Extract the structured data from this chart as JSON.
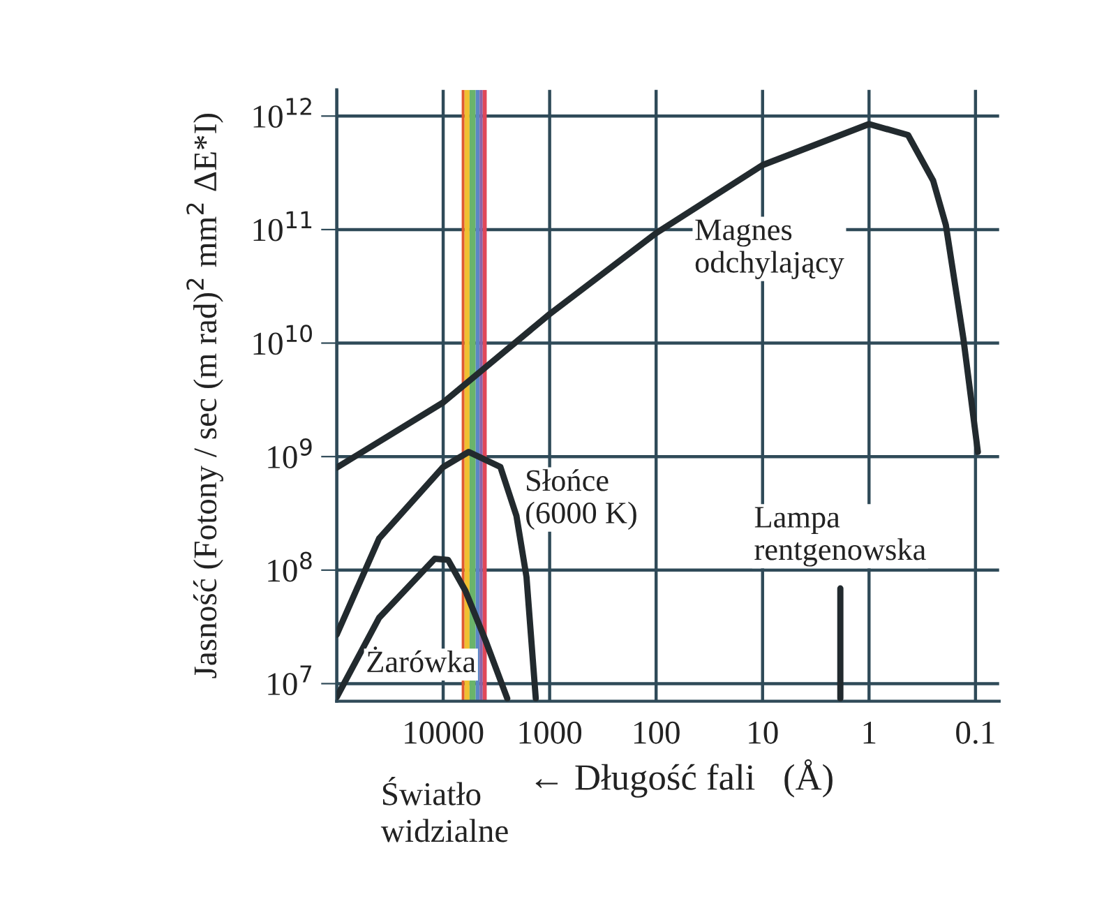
{
  "chart_data": {
    "type": "line",
    "xlabel": "← Długość fali   (Å)",
    "ylabel": "Jasność (Fotony / sec (m rad)$^{2}$ mm$^{2}$ ΔE*I)",
    "log": "xy",
    "xlim": [
      100000,
      0.06
    ],
    "ylim": [
      7000000,
      1700000000000.0
    ],
    "xticks": [
      {
        "value": 100000,
        "label": null
      },
      10000,
      1000,
      100,
      10,
      1,
      0.1
    ],
    "yticks": [
      {
        "value": 10000000.0,
        "label": "10$^{7}$"
      },
      {
        "value": 100000000.0,
        "label": "10$^{8}$"
      },
      {
        "value": 1000000000.0,
        "label": "10$^{9}$"
      },
      {
        "value": 10000000000.0,
        "label": "10$^{10}$"
      },
      {
        "value": 100000000000.0,
        "label": "10$^{11}$"
      },
      {
        "value": 1000000000000.0,
        "label": "10$^{12}$"
      }
    ],
    "grid": true,
    "marker": "none",
    "line_style": "solid",
    "series": [
      {
        "color": "#222a2e",
        "x": [
          100000,
          10000,
          1000,
          100,
          10,
          1,
          0.43,
          0.25,
          0.19,
          0.13,
          0.095
        ],
        "values": [
          800000000.0,
          3000000000.0,
          18000000000.0,
          93000000000.0,
          370000000000.0,
          850000000000.0,
          680000000000.0,
          270000000000.0,
          110000000000.0,
          11000000000.0,
          1100000000.0
        ]
      },
      {
        "color": "#222a2e",
        "x": [
          100000,
          40000,
          10000,
          5750,
          2900,
          2050,
          1650,
          1350
        ],
        "values": [
          27000000.0,
          190000000.0,
          810000000.0,
          1100000000.0,
          810000000.0,
          300000000.0,
          87000000.0,
          7400000.0
        ]
      },
      {
        "color": "#222a2e",
        "x": [
          100000,
          40000,
          12000,
          9000,
          6200,
          4000,
          2500
        ],
        "values": [
          7600000.0,
          38000000.0,
          126000000.0,
          123000000.0,
          66000000.0,
          24000000.0,
          7400000.0
        ]
      },
      {
        "color": "#222a2e",
        "x": [
          1.86,
          1.86
        ],
        "values": [
          69000000.0,
          7400000.0
        ]
      }
    ],
    "bands": [
      {
        "axis": "x",
        "from": 6700,
        "to": 6300,
        "color": "#e05a30"
      },
      {
        "axis": "x",
        "from": 6300,
        "to": 5650,
        "color": "#f0c030"
      },
      {
        "axis": "x",
        "from": 5650,
        "to": 4950,
        "color": "#6ab46a"
      },
      {
        "axis": "x",
        "from": 4950,
        "to": 4550,
        "color": "#5b86c4"
      },
      {
        "axis": "x",
        "from": 4550,
        "to": 4250,
        "color": "#8a64a8"
      },
      {
        "axis": "x",
        "from": 4250,
        "to": 3900,
        "color": "#e0485a"
      }
    ],
    "annotations": [
      "Magnes\nodchylający",
      "Słońce\n(6000 K)",
      "Lampa\nrentgenowska",
      "Żarówka",
      "Światło\nwidzialne"
    ]
  }
}
